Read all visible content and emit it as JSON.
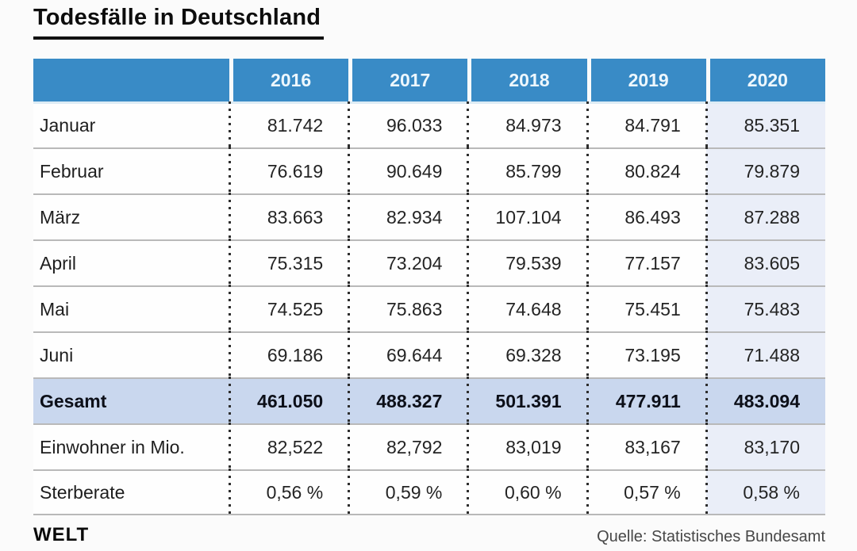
{
  "title": "Todesfälle in Deutschland",
  "footer": {
    "brand": "WELT",
    "source": "Quelle: Statistisches Bundesamt"
  },
  "colors": {
    "page_bg": "#fbfbfb",
    "header_bg": "#398bc6",
    "header_text": "#edf7fd",
    "total_row_bg": "#c9d7ee",
    "col2020_bg": "#eaeef8",
    "separator": "#b9b9b9"
  },
  "chart_data": {
    "type": "table",
    "title": "Todesfälle in Deutschland",
    "columns": [
      "",
      "2016",
      "2017",
      "2018",
      "2019",
      "2020"
    ],
    "highlight_column": "2020",
    "rows": [
      {
        "label": "Januar",
        "values": [
          "81.742",
          "96.033",
          "84.973",
          "84.791",
          "85.351"
        ]
      },
      {
        "label": "Februar",
        "values": [
          "76.619",
          "90.649",
          "85.799",
          "80.824",
          "79.879"
        ]
      },
      {
        "label": "März",
        "values": [
          "83.663",
          "82.934",
          "107.104",
          "86.493",
          "87.288"
        ]
      },
      {
        "label": "April",
        "values": [
          "75.315",
          "73.204",
          "79.539",
          "77.157",
          "83.605"
        ]
      },
      {
        "label": "Mai",
        "values": [
          "74.525",
          "75.863",
          "74.648",
          "75.451",
          "75.483"
        ]
      },
      {
        "label": "Juni",
        "values": [
          "69.186",
          "69.644",
          "69.328",
          "73.195",
          "71.488"
        ]
      },
      {
        "label": "Gesamt",
        "style": "total",
        "values": [
          "461.050",
          "488.327",
          "501.391",
          "477.911",
          "483.094"
        ]
      },
      {
        "label": "Einwohner in Mio.",
        "values": [
          "82,522",
          "82,792",
          "83,019",
          "83,167",
          "83,170"
        ]
      },
      {
        "label": "Sterberate",
        "values": [
          "0,56 %",
          "0,59 %",
          "0,60 %",
          "0,57 %",
          "0,58 %"
        ]
      }
    ]
  }
}
